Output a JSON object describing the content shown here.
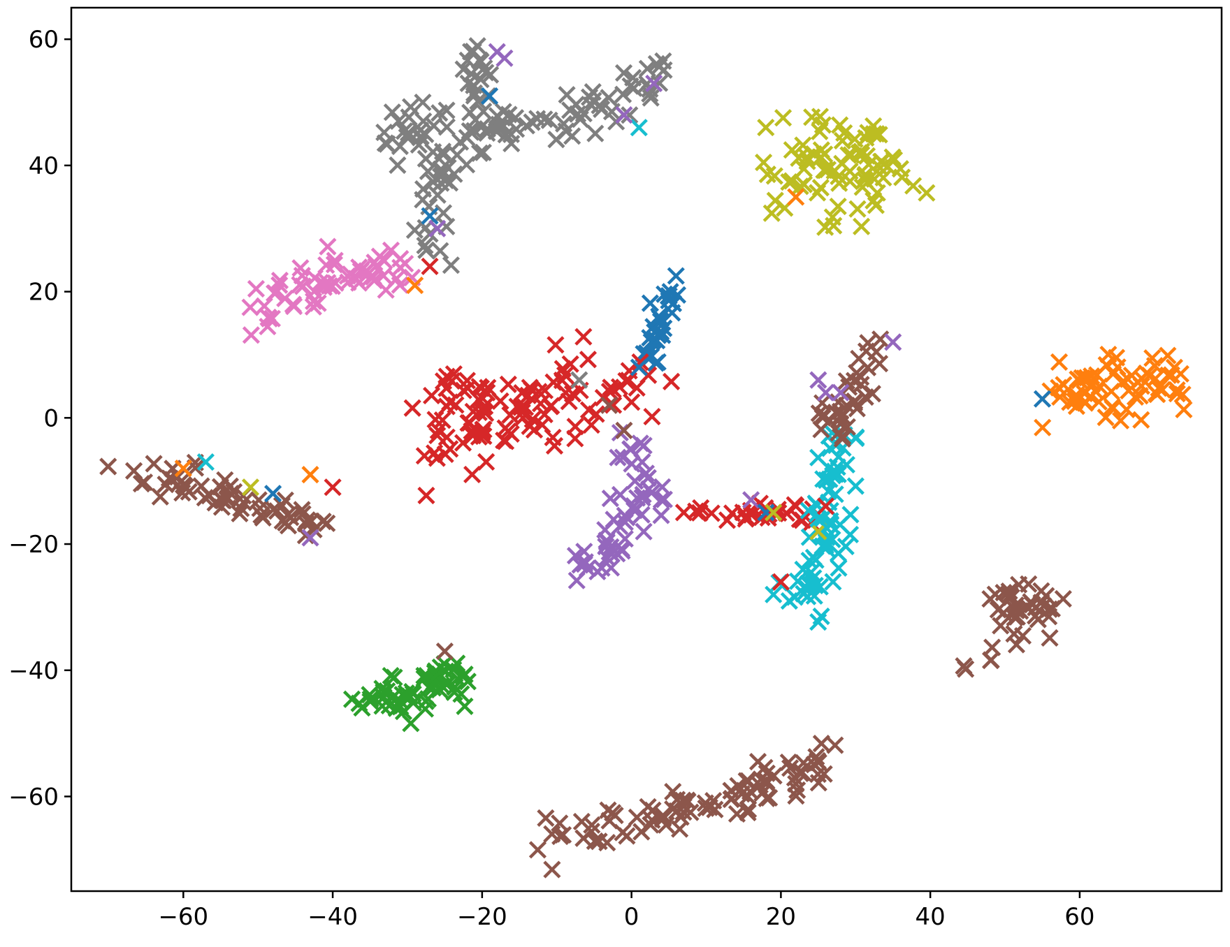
{
  "chart_data": {
    "type": "scatter",
    "marker": "x",
    "title": "",
    "xlabel": "",
    "ylabel": "",
    "xlim": [
      -75,
      79
    ],
    "ylim": [
      -75,
      65
    ],
    "grid": false,
    "legend": "none",
    "x_ticks": [
      -60,
      -40,
      -20,
      0,
      20,
      40,
      60
    ],
    "y_ticks": [
      60,
      40,
      20,
      0,
      -20,
      -40,
      -60
    ],
    "x_tick_labels": [
      "−60",
      "−40",
      "−20",
      "0",
      "20",
      "40",
      "60"
    ],
    "y_tick_labels": [
      "60",
      "40",
      "20",
      "0",
      "−20",
      "−40",
      "−60"
    ],
    "colors": {
      "blue": "#1f77b4",
      "orange": "#ff7f0e",
      "green": "#2ca02c",
      "red": "#d62728",
      "purple": "#9467bd",
      "brown": "#8c564b",
      "pink": "#e377c2",
      "gray": "#7f7f7f",
      "olive": "#bcbd22",
      "cyan": "#17becf"
    },
    "clusters": [
      {
        "color": "gray",
        "path": [
          [
            -28,
            25
          ],
          [
            -27,
            33
          ],
          [
            -26,
            38
          ],
          [
            -22,
            43
          ],
          [
            -19,
            46
          ],
          [
            -13,
            47
          ],
          [
            -5,
            48
          ],
          [
            -2,
            50
          ],
          [
            0,
            53
          ],
          [
            5,
            55
          ]
        ],
        "count": 90,
        "spread": 1.8
      },
      {
        "color": "gray",
        "path": [
          [
            -32,
            45
          ],
          [
            -29,
            46
          ],
          [
            -26,
            44
          ]
        ],
        "count": 25,
        "spread": 2.2
      },
      {
        "color": "gray",
        "path": [
          [
            -22,
            45
          ],
          [
            -21,
            52
          ],
          [
            -20,
            57
          ]
        ],
        "count": 25,
        "spread": 1.6
      },
      {
        "color": "pink",
        "path": [
          [
            -49,
            17
          ],
          [
            -44,
            20
          ],
          [
            -37,
            22
          ],
          [
            -30,
            24
          ]
        ],
        "count": 60,
        "spread": 1.6
      },
      {
        "color": "olive",
        "path": [
          [
            24,
            35
          ],
          [
            26,
            44
          ],
          [
            30,
            41
          ],
          [
            34,
            37
          ]
        ],
        "count": 80,
        "spread": 3.2
      },
      {
        "color": "blue",
        "path": [
          [
            2,
            9
          ],
          [
            4,
            14
          ],
          [
            5,
            21
          ]
        ],
        "count": 30,
        "spread": 1.0
      },
      {
        "color": "red",
        "path": [
          [
            -22,
            5
          ],
          [
            -25,
            0
          ],
          [
            -21,
            -5
          ],
          [
            -14,
            2
          ],
          [
            -9,
            4
          ],
          [
            0,
            5
          ]
        ],
        "count": 110,
        "spread": 3.0
      },
      {
        "color": "purple",
        "path": [
          [
            1,
            -4
          ],
          [
            1,
            -13
          ],
          [
            -2,
            -17
          ],
          [
            -6,
            -24
          ]
        ],
        "count": 55,
        "spread": 1.5
      },
      {
        "color": "red",
        "path": [
          [
            6,
            -15
          ],
          [
            14,
            -15
          ],
          [
            24,
            -15
          ]
        ],
        "count": 25,
        "spread": 0.9
      },
      {
        "color": "cyan",
        "path": [
          [
            28,
            -3
          ],
          [
            26,
            -12
          ],
          [
            27,
            -20
          ],
          [
            22,
            -29
          ]
        ],
        "count": 70,
        "spread": 1.6
      },
      {
        "color": "brown",
        "path": [
          [
            32,
            12
          ],
          [
            30,
            2
          ],
          [
            26,
            -2
          ]
        ],
        "count": 35,
        "spread": 1.5
      },
      {
        "color": "orange",
        "path": [
          [
            57,
            3
          ],
          [
            62,
            4
          ],
          [
            68,
            7
          ],
          [
            70,
            4
          ]
        ],
        "count": 65,
        "spread": 2.4
      },
      {
        "color": "brown",
        "path": [
          [
            -68,
            -8
          ],
          [
            -58,
            -11
          ],
          [
            -48,
            -15
          ],
          [
            -42,
            -17
          ]
        ],
        "count": 60,
        "spread": 1.5
      },
      {
        "color": "brown",
        "path": [
          [
            49,
            -30
          ],
          [
            55,
            -29
          ],
          [
            51,
            -36
          ],
          [
            48,
            -38
          ]
        ],
        "count": 40,
        "spread": 1.8
      },
      {
        "color": "green",
        "path": [
          [
            -36,
            -45
          ],
          [
            -29,
            -44
          ],
          [
            -24,
            -40
          ],
          [
            -22,
            -42
          ]
        ],
        "count": 60,
        "spread": 1.8
      },
      {
        "color": "brown",
        "path": [
          [
            -10,
            -66
          ],
          [
            0,
            -65
          ],
          [
            10,
            -61
          ],
          [
            20,
            -57
          ],
          [
            27,
            -53
          ]
        ],
        "count": 90,
        "spread": 1.5
      }
    ],
    "outliers": [
      {
        "color": "purple",
        "x": -18,
        "y": 58
      },
      {
        "color": "purple",
        "x": -17,
        "y": 57
      },
      {
        "color": "blue",
        "x": -19,
        "y": 51
      },
      {
        "color": "cyan",
        "x": 1,
        "y": 46
      },
      {
        "color": "purple",
        "x": -1,
        "y": 48
      },
      {
        "color": "purple",
        "x": 3,
        "y": 53
      },
      {
        "color": "blue",
        "x": -27,
        "y": 32
      },
      {
        "color": "purple",
        "x": -26,
        "y": 30
      },
      {
        "color": "orange",
        "x": -29,
        "y": 21
      },
      {
        "color": "red",
        "x": -27,
        "y": 24
      },
      {
        "color": "orange",
        "x": 22,
        "y": 35
      },
      {
        "color": "gray",
        "x": -7,
        "y": 6
      },
      {
        "color": "brown",
        "x": -3,
        "y": 2
      },
      {
        "color": "brown",
        "x": -1,
        "y": -2
      },
      {
        "color": "blue",
        "x": 1,
        "y": 8
      },
      {
        "color": "purple",
        "x": 25,
        "y": 6
      },
      {
        "color": "purple",
        "x": 26,
        "y": 4
      },
      {
        "color": "purple",
        "x": 35,
        "y": 12
      },
      {
        "color": "purple",
        "x": 28,
        "y": 4
      },
      {
        "color": "blue",
        "x": 55,
        "y": 3
      },
      {
        "color": "orange",
        "x": -60,
        "y": -8
      },
      {
        "color": "cyan",
        "x": -57,
        "y": -7
      },
      {
        "color": "olive",
        "x": -51,
        "y": -11
      },
      {
        "color": "blue",
        "x": -48,
        "y": -12
      },
      {
        "color": "orange",
        "x": -43,
        "y": -9
      },
      {
        "color": "red",
        "x": -40,
        "y": -11
      },
      {
        "color": "purple",
        "x": -43,
        "y": -19
      },
      {
        "color": "purple",
        "x": 4,
        "y": -13
      },
      {
        "color": "red",
        "x": 7,
        "y": -15
      },
      {
        "color": "purple",
        "x": 16,
        "y": -13
      },
      {
        "color": "blue",
        "x": 18,
        "y": -15
      },
      {
        "color": "olive",
        "x": 19,
        "y": -15
      },
      {
        "color": "red",
        "x": 22,
        "y": -14
      },
      {
        "color": "red",
        "x": 26,
        "y": -14
      },
      {
        "color": "olive",
        "x": 25,
        "y": -18
      },
      {
        "color": "cyan",
        "x": 25,
        "y": -16
      },
      {
        "color": "red",
        "x": 20,
        "y": -26
      },
      {
        "color": "cyan",
        "x": 19,
        "y": -28
      },
      {
        "color": "brown",
        "x": -25,
        "y": -37
      },
      {
        "color": "brown",
        "x": 22,
        "y": -58
      }
    ]
  }
}
